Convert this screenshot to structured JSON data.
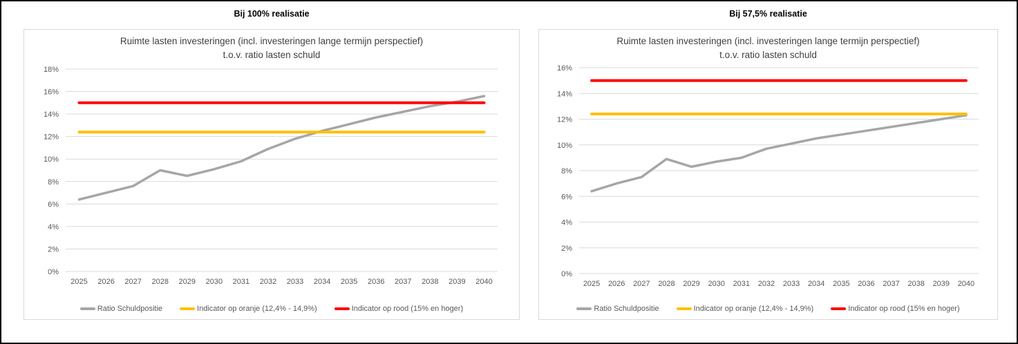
{
  "theme": {
    "background": "#FFFFFF",
    "outer_border_color": "#000000",
    "card_border_color": "#D9D9D9",
    "grid_color": "#D9D9D9",
    "axis_text_color": "#595959",
    "title_text_color": "#3F3F3F",
    "header_text_color": "#000000"
  },
  "chart_data": [
    {
      "id": "bij-100-realisatie",
      "type": "line",
      "header": "Bij 100% realisatie",
      "title": "Ruimte lasten investeringen (incl. investeringen lange termijn perspectief)",
      "subtitle": "t.o.v. ratio lasten schuld",
      "categories": [
        "2025",
        "2026",
        "2027",
        "2028",
        "2029",
        "2030",
        "2031",
        "2032",
        "2033",
        "2034",
        "2035",
        "2036",
        "2037",
        "2038",
        "2039",
        "2040"
      ],
      "ylim": [
        0,
        18
      ],
      "ytick_step": 2,
      "yticks": [
        "18%",
        "16%",
        "14%",
        "12%",
        "10%",
        "8%",
        "6%",
        "4%",
        "2%",
        "0%"
      ],
      "grid": true,
      "legend_position": "bottom",
      "series": [
        {
          "name": "Ratio Schuldpositie",
          "color": "#A6A6A6",
          "stroke_width": 3.5,
          "values": [
            6.4,
            7.0,
            7.6,
            9.0,
            8.5,
            9.1,
            9.8,
            10.9,
            11.8,
            12.5,
            13.1,
            13.7,
            14.2,
            14.7,
            15.1,
            15.6
          ]
        },
        {
          "name": "Indicator op oranje (12,4% - 14,9%)",
          "color": "#FFC000",
          "stroke_width": 4,
          "values": [
            12.4,
            12.4,
            12.4,
            12.4,
            12.4,
            12.4,
            12.4,
            12.4,
            12.4,
            12.4,
            12.4,
            12.4,
            12.4,
            12.4,
            12.4,
            12.4
          ]
        },
        {
          "name": "Indicator op rood (15% en hoger)",
          "color": "#FF0000",
          "stroke_width": 4,
          "values": [
            15,
            15,
            15,
            15,
            15,
            15,
            15,
            15,
            15,
            15,
            15,
            15,
            15,
            15,
            15,
            15
          ]
        }
      ]
    },
    {
      "id": "bij-57-5-realisatie",
      "type": "line",
      "header": "Bij 57,5% realisatie",
      "title": "Ruimte lasten investeringen (incl. investeringen lange termijn perspectief)",
      "subtitle": "t.o.v. ratio lasten schuld",
      "categories": [
        "2025",
        "2026",
        "2027",
        "2028",
        "2029",
        "2030",
        "2031",
        "2032",
        "2033",
        "2034",
        "2035",
        "2036",
        "2037",
        "2038",
        "2039",
        "2040"
      ],
      "ylim": [
        0,
        16
      ],
      "ytick_step": 2,
      "yticks": [
        "16%",
        "14%",
        "12%",
        "10%",
        "8%",
        "6%",
        "4%",
        "2%",
        "0%"
      ],
      "grid": true,
      "legend_position": "bottom",
      "series": [
        {
          "name": "Ratio Schuldpositie",
          "color": "#A6A6A6",
          "stroke_width": 3.5,
          "values": [
            6.4,
            7.0,
            7.5,
            8.9,
            8.3,
            8.7,
            9.0,
            9.7,
            10.1,
            10.5,
            10.8,
            11.1,
            11.4,
            11.7,
            12.0,
            12.3
          ]
        },
        {
          "name": "Indicator op oranje (12,4% - 14,9%)",
          "color": "#FFC000",
          "stroke_width": 4,
          "values": [
            12.4,
            12.4,
            12.4,
            12.4,
            12.4,
            12.4,
            12.4,
            12.4,
            12.4,
            12.4,
            12.4,
            12.4,
            12.4,
            12.4,
            12.4,
            12.4
          ]
        },
        {
          "name": "Indicator op rood (15% en hoger)",
          "color": "#FF0000",
          "stroke_width": 4,
          "values": [
            15,
            15,
            15,
            15,
            15,
            15,
            15,
            15,
            15,
            15,
            15,
            15,
            15,
            15,
            15,
            15
          ]
        }
      ]
    }
  ]
}
